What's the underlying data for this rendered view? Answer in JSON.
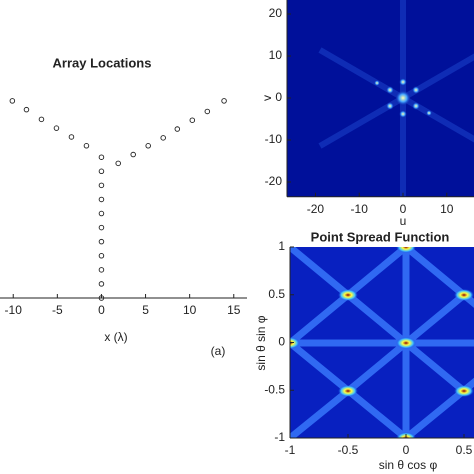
{
  "chart_data": [
    {
      "type": "scatter",
      "title": "Array Locations",
      "xlabel": "x (λ)",
      "annotation": "(a)",
      "x": [
        0,
        0,
        0,
        0,
        0,
        0,
        0,
        0,
        0,
        0,
        0,
        1.9,
        3.6,
        5.3,
        7.0,
        8.6,
        10.3,
        12.0,
        13.9,
        -1.7,
        -3.4,
        -5.1,
        -6.8,
        -8.5,
        -10.1
      ],
      "y": [
        0,
        1.6,
        3.2,
        4.8,
        6.4,
        8.0,
        9.6,
        11.2,
        12.8,
        14.4,
        16.0,
        15.3,
        16.3,
        17.3,
        18.2,
        19.2,
        20.2,
        21.2,
        22.4,
        17.3,
        18.3,
        19.3,
        20.3,
        21.4,
        22.4
      ],
      "xlim": [
        -11.5,
        16.5
      ],
      "ylim": [
        0,
        25
      ],
      "xticks": [
        -10,
        -5,
        0,
        5,
        10,
        15
      ]
    },
    {
      "type": "heatmap",
      "xlabel": "u",
      "ylabel": "v",
      "xlim": [
        -26.5,
        26.5
      ],
      "ylim": [
        -23.5,
        23.5
      ],
      "xticks": [
        -20,
        -10,
        0,
        10
      ],
      "yticks": [
        -20,
        -10,
        0,
        10,
        20
      ]
    },
    {
      "type": "heatmap",
      "title": "Point Spread Function",
      "xlabel": "sin θ cos φ",
      "ylabel": "sin θ sin φ",
      "xlim": [
        -1,
        1
      ],
      "ylim": [
        -1,
        1
      ],
      "xticks": [
        -1,
        -0.5,
        0,
        0.5
      ],
      "yticks": [
        -1,
        -0.5,
        0,
        0.5,
        1
      ]
    }
  ]
}
